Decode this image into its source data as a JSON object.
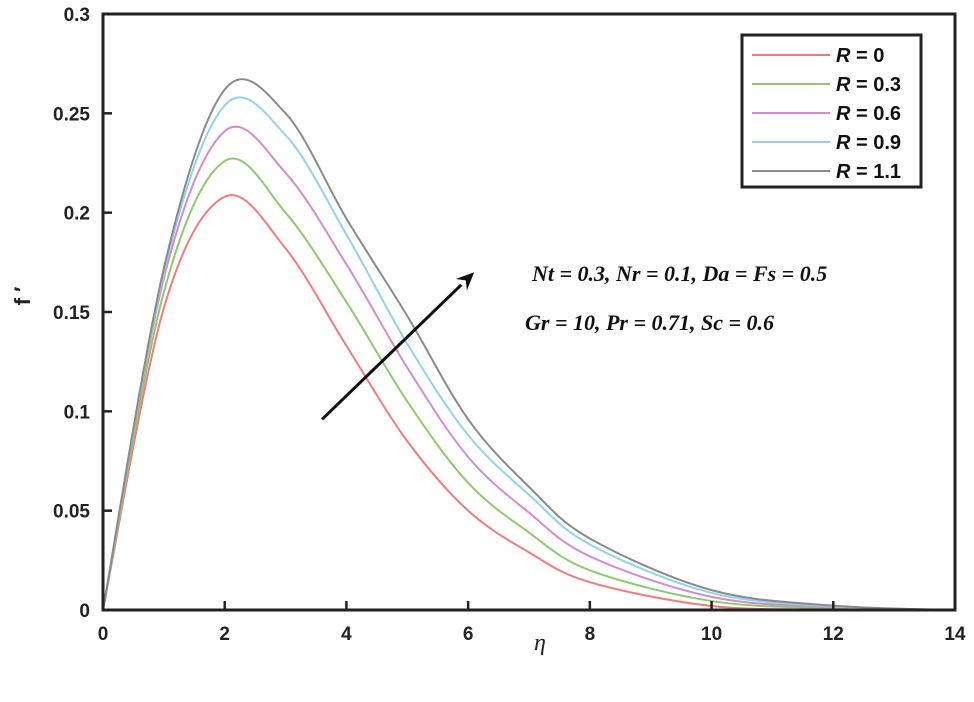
{
  "chart_data": {
    "type": "line",
    "title": "",
    "xlabel": "η",
    "ylabel": "f ′",
    "xlim": [
      0,
      14
    ],
    "ylim": [
      0,
      0.3
    ],
    "grid": false,
    "legend_position": "upper right",
    "x_ticks": [
      "0",
      "2",
      "4",
      "6",
      "8",
      "10",
      "12",
      "14"
    ],
    "y_ticks": [
      "0",
      "0.05",
      "0.1",
      "0.15",
      "0.2",
      "0.25",
      "0.3"
    ],
    "x": [
      0,
      1,
      2,
      3,
      4,
      5,
      6,
      7,
      8,
      10,
      12,
      14
    ],
    "series": [
      {
        "name": "R = 0",
        "color": "#f47a7a",
        "values": [
          0,
          0.152,
          0.208,
          0.182,
          0.133,
          0.085,
          0.05,
          0.029,
          0.014,
          0.002,
          0.0003,
          0
        ]
      },
      {
        "name": "R = 0.3",
        "color": "#8ccb6a",
        "values": [
          0,
          0.16,
          0.226,
          0.2,
          0.155,
          0.105,
          0.064,
          0.039,
          0.02,
          0.0045,
          0.0008,
          0
        ]
      },
      {
        "name": "R = 0.6",
        "color": "#d58ad0",
        "values": [
          0,
          0.167,
          0.241,
          0.22,
          0.174,
          0.122,
          0.077,
          0.049,
          0.027,
          0.0066,
          0.0013,
          0
        ]
      },
      {
        "name": "R = 0.9",
        "color": "#8fd4ea",
        "values": [
          0,
          0.17,
          0.254,
          0.239,
          0.189,
          0.134,
          0.088,
          0.058,
          0.033,
          0.0086,
          0.0018,
          0
        ]
      },
      {
        "name": "R = 1.1",
        "color": "#8a8a8a",
        "values": [
          0,
          0.172,
          0.262,
          0.25,
          0.197,
          0.148,
          0.096,
          0.062,
          0.036,
          0.01,
          0.0022,
          0
        ]
      }
    ],
    "annotations": [
      "Nt = 0.3, Nr = 0.1, Da = Fs = 0.5",
      "Gr = 10, Pr = 0.71, Sc = 0.6"
    ],
    "arrow": {
      "from": [
        3.6,
        0.096
      ],
      "to": [
        6.1,
        0.17
      ],
      "meaning": "increasing R"
    }
  }
}
